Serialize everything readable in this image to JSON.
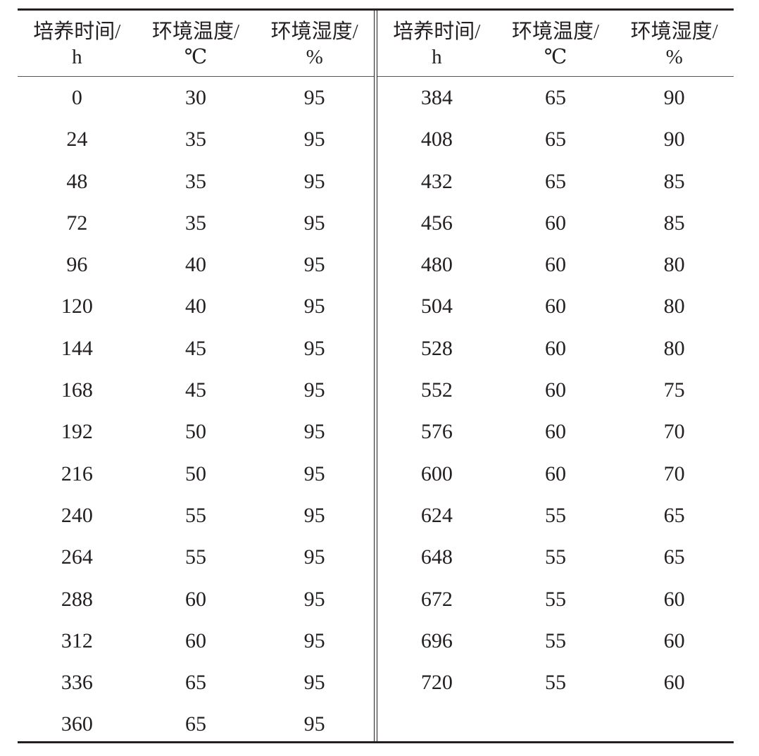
{
  "headers": [
    {
      "name": "培养时间/",
      "unit": "h"
    },
    {
      "name": "环境温度/",
      "unit": "℃"
    },
    {
      "name": "环境湿度/",
      "unit": "%"
    }
  ],
  "left_rows": [
    [
      "0",
      "30",
      "95"
    ],
    [
      "24",
      "35",
      "95"
    ],
    [
      "48",
      "35",
      "95"
    ],
    [
      "72",
      "35",
      "95"
    ],
    [
      "96",
      "40",
      "95"
    ],
    [
      "120",
      "40",
      "95"
    ],
    [
      "144",
      "45",
      "95"
    ],
    [
      "168",
      "45",
      "95"
    ],
    [
      "192",
      "50",
      "95"
    ],
    [
      "216",
      "50",
      "95"
    ],
    [
      "240",
      "55",
      "95"
    ],
    [
      "264",
      "55",
      "95"
    ],
    [
      "288",
      "60",
      "95"
    ],
    [
      "312",
      "60",
      "95"
    ],
    [
      "336",
      "65",
      "95"
    ],
    [
      "360",
      "65",
      "95"
    ]
  ],
  "right_rows": [
    [
      "384",
      "65",
      "90"
    ],
    [
      "408",
      "65",
      "90"
    ],
    [
      "432",
      "65",
      "85"
    ],
    [
      "456",
      "60",
      "85"
    ],
    [
      "480",
      "60",
      "80"
    ],
    [
      "504",
      "60",
      "80"
    ],
    [
      "528",
      "60",
      "80"
    ],
    [
      "552",
      "60",
      "75"
    ],
    [
      "576",
      "60",
      "70"
    ],
    [
      "600",
      "60",
      "70"
    ],
    [
      "624",
      "55",
      "65"
    ],
    [
      "648",
      "55",
      "65"
    ],
    [
      "672",
      "55",
      "60"
    ],
    [
      "696",
      "55",
      "60"
    ],
    [
      "720",
      "55",
      "60"
    ]
  ]
}
